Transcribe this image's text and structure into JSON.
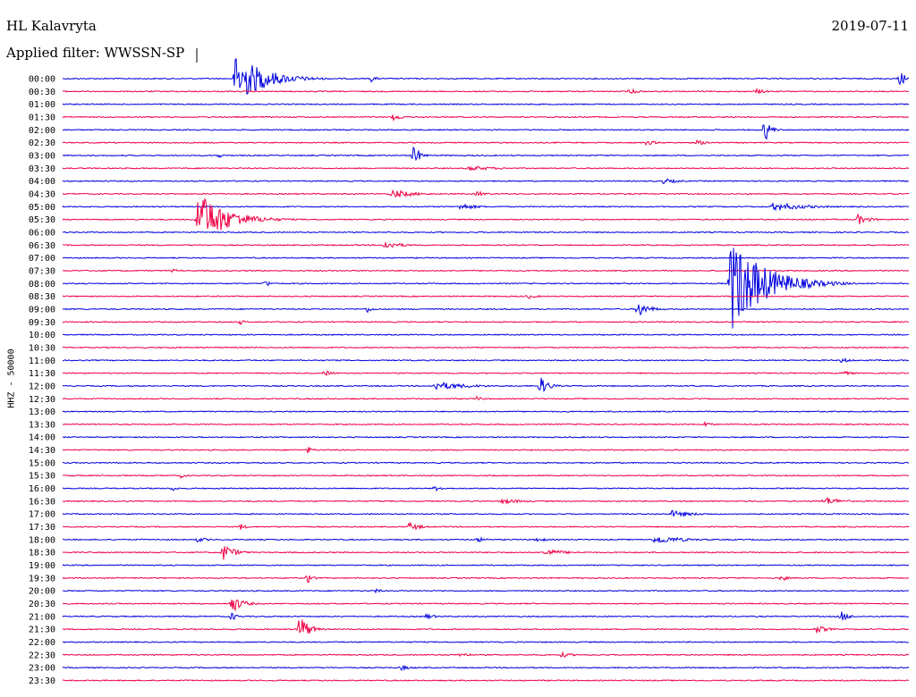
{
  "header": {
    "station": "HL Kalavryta",
    "date": "2019-07-11",
    "filter": "Applied filter: WWSSN-SP",
    "channel": "HHZ - 50000"
  },
  "chart_data": {
    "type": "line",
    "title": "HL Kalavryta",
    "subtitle": "Applied filter: WWSSN-SP",
    "ylabel": "HHZ - 50000",
    "colors": {
      "even": "#0000dd",
      "odd": "#ee0044"
    },
    "rows": [
      {
        "label": "00:00",
        "events": [
          {
            "t": 0.205,
            "a": 30,
            "w": 0.05
          },
          {
            "t": 0.365,
            "a": 4,
            "w": 0.01
          },
          {
            "t": 0.99,
            "a": 8,
            "w": 0.015
          }
        ]
      },
      {
        "label": "00:30",
        "events": [
          {
            "t": 0.67,
            "a": 3,
            "w": 0.02
          },
          {
            "t": 0.82,
            "a": 3,
            "w": 0.02
          }
        ]
      },
      {
        "label": "01:00",
        "events": []
      },
      {
        "label": "01:30",
        "events": [
          {
            "t": 0.39,
            "a": 4,
            "w": 0.02
          }
        ]
      },
      {
        "label": "02:00",
        "events": [
          {
            "t": 0.83,
            "a": 14,
            "w": 0.01
          }
        ]
      },
      {
        "label": "02:30",
        "events": [
          {
            "t": 0.69,
            "a": 3,
            "w": 0.02
          },
          {
            "t": 0.75,
            "a": 3,
            "w": 0.02
          }
        ]
      },
      {
        "label": "03:00",
        "events": [
          {
            "t": 0.185,
            "a": 4,
            "w": 0.005
          },
          {
            "t": 0.415,
            "a": 14,
            "w": 0.01
          }
        ]
      },
      {
        "label": "03:30",
        "events": [
          {
            "t": 0.48,
            "a": 3,
            "w": 0.05
          }
        ]
      },
      {
        "label": "04:00",
        "events": [
          {
            "t": 0.71,
            "a": 3,
            "w": 0.03
          }
        ]
      },
      {
        "label": "04:30",
        "events": [
          {
            "t": 0.39,
            "a": 5,
            "w": 0.04
          },
          {
            "t": 0.49,
            "a": 3,
            "w": 0.02
          }
        ]
      },
      {
        "label": "05:00",
        "events": [
          {
            "t": 0.47,
            "a": 4,
            "w": 0.03
          },
          {
            "t": 0.84,
            "a": 5,
            "w": 0.06
          }
        ]
      },
      {
        "label": "05:30",
        "events": [
          {
            "t": 0.16,
            "a": 32,
            "w": 0.05
          },
          {
            "t": 0.94,
            "a": 6,
            "w": 0.02
          }
        ]
      },
      {
        "label": "06:00",
        "events": []
      },
      {
        "label": "06:30",
        "events": [
          {
            "t": 0.38,
            "a": 5,
            "w": 0.03
          }
        ]
      },
      {
        "label": "07:00",
        "events": []
      },
      {
        "label": "07:30",
        "events": [
          {
            "t": 0.13,
            "a": 2,
            "w": 0.02
          }
        ]
      },
      {
        "label": "08:00",
        "events": [
          {
            "t": 0.24,
            "a": 5,
            "w": 0.008
          },
          {
            "t": 0.79,
            "a": 55,
            "w": 0.06
          }
        ]
      },
      {
        "label": "08:30",
        "events": [
          {
            "t": 0.55,
            "a": 3,
            "w": 0.015
          }
        ]
      },
      {
        "label": "09:00",
        "events": [
          {
            "t": 0.36,
            "a": 4,
            "w": 0.01
          },
          {
            "t": 0.68,
            "a": 9,
            "w": 0.02
          }
        ]
      },
      {
        "label": "09:30",
        "events": [
          {
            "t": 0.21,
            "a": 3,
            "w": 0.01
          }
        ]
      },
      {
        "label": "10:00",
        "events": []
      },
      {
        "label": "10:30",
        "events": []
      },
      {
        "label": "11:00",
        "events": [
          {
            "t": 0.92,
            "a": 3,
            "w": 0.02
          }
        ]
      },
      {
        "label": "11:30",
        "events": [
          {
            "t": 0.31,
            "a": 3,
            "w": 0.02
          },
          {
            "t": 0.92,
            "a": 3,
            "w": 0.02
          }
        ]
      },
      {
        "label": "12:00",
        "events": [
          {
            "t": 0.44,
            "a": 5,
            "w": 0.06
          },
          {
            "t": 0.565,
            "a": 10,
            "w": 0.015
          }
        ]
      },
      {
        "label": "12:30",
        "events": [
          {
            "t": 0.49,
            "a": 3,
            "w": 0.01
          }
        ]
      },
      {
        "label": "13:00",
        "events": []
      },
      {
        "label": "13:30",
        "events": [
          {
            "t": 0.76,
            "a": 4,
            "w": 0.01
          }
        ]
      },
      {
        "label": "14:00",
        "events": []
      },
      {
        "label": "14:30",
        "events": [
          {
            "t": 0.29,
            "a": 4,
            "w": 0.01
          }
        ]
      },
      {
        "label": "15:00",
        "events": []
      },
      {
        "label": "15:30",
        "events": [
          {
            "t": 0.14,
            "a": 3,
            "w": 0.01
          }
        ]
      },
      {
        "label": "16:00",
        "events": [
          {
            "t": 0.13,
            "a": 3,
            "w": 0.01
          },
          {
            "t": 0.44,
            "a": 3,
            "w": 0.02
          }
        ]
      },
      {
        "label": "16:30",
        "events": [
          {
            "t": 0.52,
            "a": 3,
            "w": 0.04
          },
          {
            "t": 0.9,
            "a": 5,
            "w": 0.03
          }
        ]
      },
      {
        "label": "17:00",
        "events": [
          {
            "t": 0.72,
            "a": 4,
            "w": 0.04
          }
        ]
      },
      {
        "label": "17:30",
        "events": [
          {
            "t": 0.21,
            "a": 4,
            "w": 0.01
          },
          {
            "t": 0.41,
            "a": 5,
            "w": 0.02
          }
        ]
      },
      {
        "label": "18:00",
        "events": [
          {
            "t": 0.16,
            "a": 3,
            "w": 0.02
          },
          {
            "t": 0.49,
            "a": 3,
            "w": 0.02
          },
          {
            "t": 0.56,
            "a": 3,
            "w": 0.02
          },
          {
            "t": 0.7,
            "a": 5,
            "w": 0.05
          }
        ]
      },
      {
        "label": "18:30",
        "events": [
          {
            "t": 0.19,
            "a": 10,
            "w": 0.02
          },
          {
            "t": 0.57,
            "a": 4,
            "w": 0.04
          }
        ]
      },
      {
        "label": "19:00",
        "events": []
      },
      {
        "label": "19:30",
        "events": [
          {
            "t": 0.29,
            "a": 6,
            "w": 0.01
          },
          {
            "t": 0.85,
            "a": 4,
            "w": 0.01
          }
        ]
      },
      {
        "label": "20:00",
        "events": [
          {
            "t": 0.37,
            "a": 3,
            "w": 0.01
          }
        ]
      },
      {
        "label": "20:30",
        "events": [
          {
            "t": 0.2,
            "a": 10,
            "w": 0.02
          }
        ]
      },
      {
        "label": "21:00",
        "events": [
          {
            "t": 0.2,
            "a": 5,
            "w": 0.01
          },
          {
            "t": 0.43,
            "a": 3,
            "w": 0.02
          },
          {
            "t": 0.92,
            "a": 6,
            "w": 0.015
          }
        ]
      },
      {
        "label": "21:30",
        "events": [
          {
            "t": 0.28,
            "a": 18,
            "w": 0.015
          },
          {
            "t": 0.89,
            "a": 5,
            "w": 0.02
          }
        ]
      },
      {
        "label": "22:00",
        "events": []
      },
      {
        "label": "22:30",
        "events": [
          {
            "t": 0.47,
            "a": 3,
            "w": 0.02
          },
          {
            "t": 0.59,
            "a": 3,
            "w": 0.02
          }
        ]
      },
      {
        "label": "23:00",
        "events": [
          {
            "t": 0.4,
            "a": 3,
            "w": 0.02
          }
        ]
      },
      {
        "label": "23:30",
        "events": []
      }
    ]
  }
}
